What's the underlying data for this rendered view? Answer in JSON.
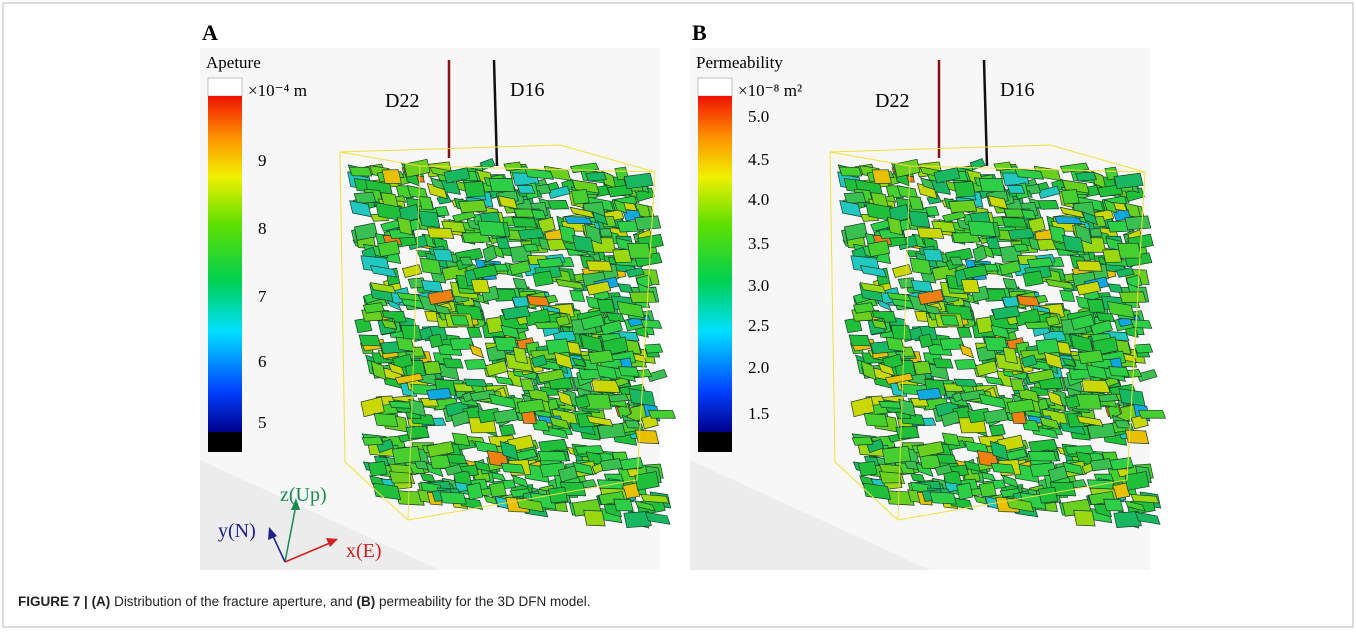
{
  "panels": [
    {
      "label": "A",
      "title": "Apeture",
      "unit": "×10⁻⁴ m",
      "ticks": [
        "9",
        "8",
        "7",
        "6",
        "5"
      ],
      "wells": [
        "D22",
        "D16"
      ]
    },
    {
      "label": "B",
      "title": "Permeability",
      "unit": "×10⁻⁸ m²",
      "ticks": [
        "5.0",
        "4.5",
        "4.0",
        "3.5",
        "3.0",
        "2.5",
        "2.0",
        "1.5"
      ],
      "wells": [
        "D22",
        "D16"
      ]
    }
  ],
  "axes": {
    "z": "z(Up)",
    "y": "y(N)",
    "x": "x(E)"
  },
  "caption": {
    "label": "FIGURE 7 |",
    "a": "(A)",
    "text_a": " Distribution of the fracture aperture, and ",
    "b": "(B)",
    "text_b": " permeability for the 3D DFN model."
  }
}
